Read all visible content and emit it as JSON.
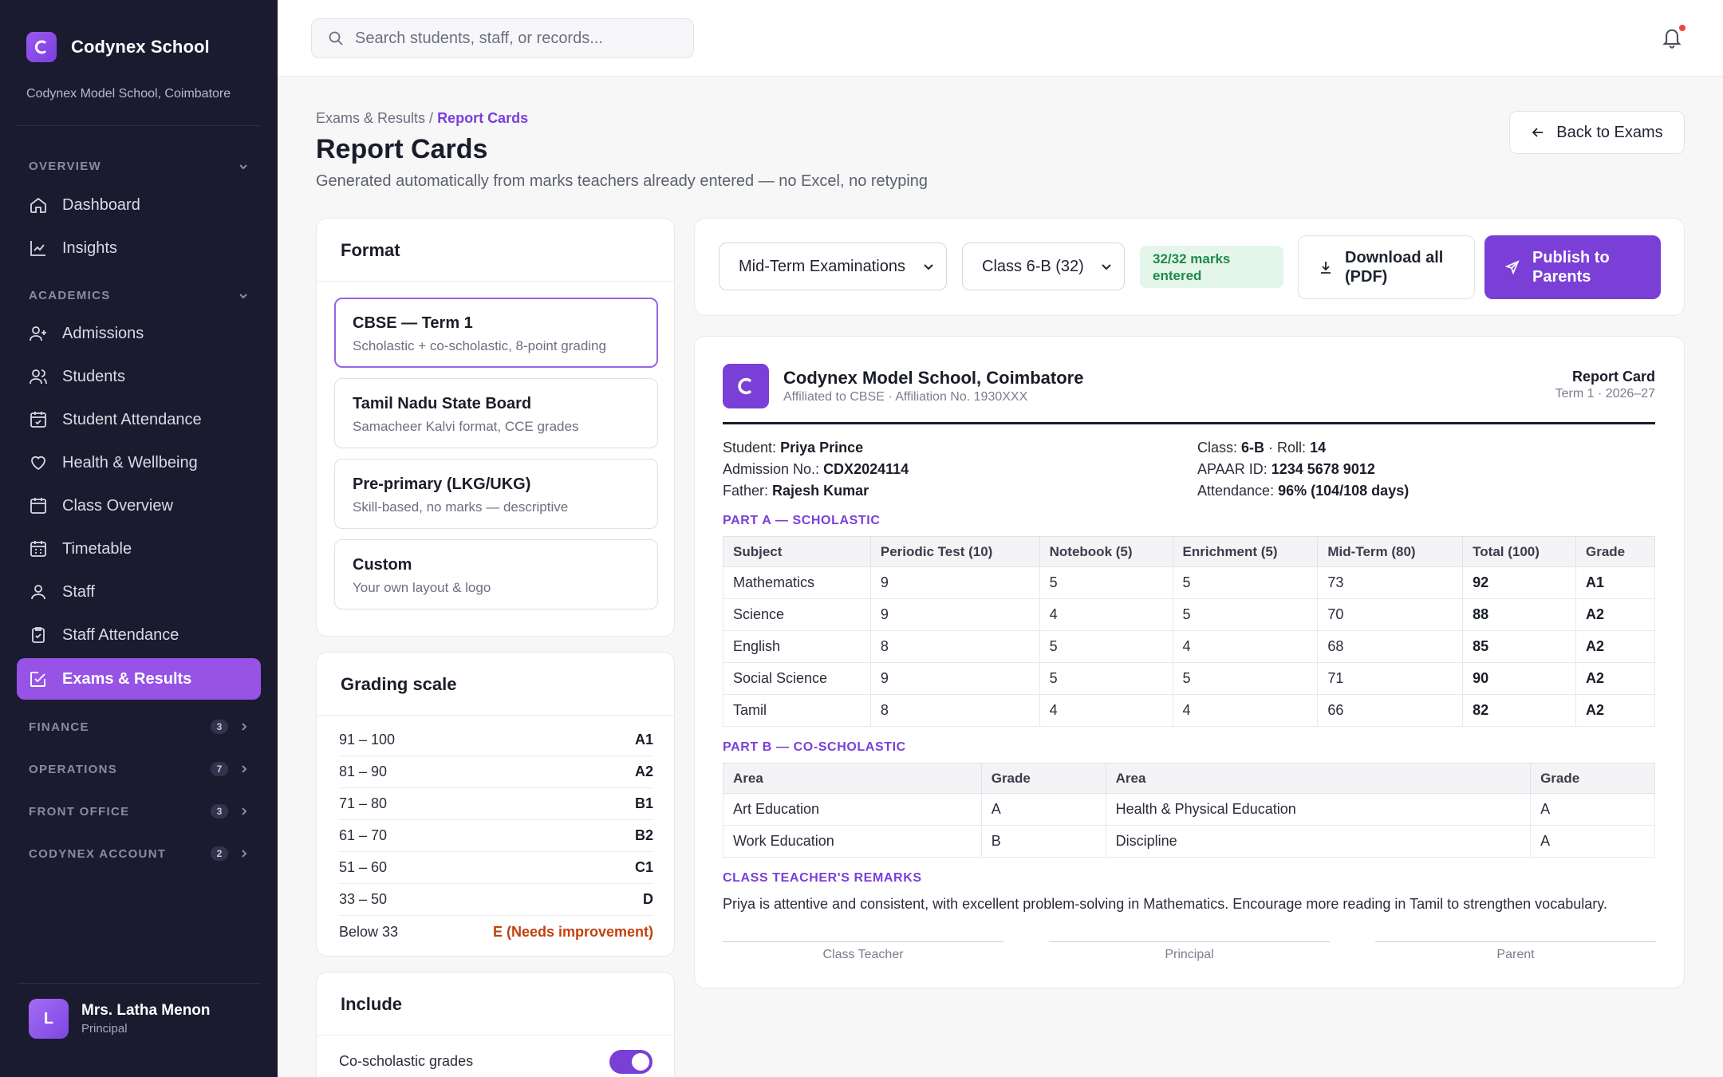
{
  "brand": {
    "name": "Codynex School",
    "subtitle": "Codynex Model School, Coimbatore"
  },
  "sidebar": {
    "sections": {
      "overview": "OVERVIEW",
      "academics": "ACADEMICS",
      "finance": {
        "label": "FINANCE",
        "count": "3"
      },
      "operations": {
        "label": "OPERATIONS",
        "count": "7"
      },
      "front_office": {
        "label": "FRONT OFFICE",
        "count": "3"
      },
      "account": {
        "label": "CODYNEX ACCOUNT",
        "count": "2"
      }
    },
    "items": [
      "Dashboard",
      "Insights",
      "Admissions",
      "Students",
      "Student Attendance",
      "Health & Wellbeing",
      "Class Overview",
      "Timetable",
      "Staff",
      "Staff Attendance",
      "Exams & Results"
    ],
    "active": "Exams & Results"
  },
  "user": {
    "initial": "L",
    "name": "Mrs. Latha Menon",
    "role": "Principal"
  },
  "search": {
    "placeholder": "Search students, staff, or records..."
  },
  "header": {
    "crumb_parent": "Exams & Results",
    "crumb_sep": " / ",
    "crumb_current": "Report Cards",
    "title": "Report Cards",
    "subtitle": "Generated automatically from marks teachers already entered — no Excel, no retyping",
    "back_label": "Back to Exams"
  },
  "format": {
    "title": "Format",
    "options": [
      {
        "name": "CBSE — Term 1",
        "desc": "Scholastic + co-scholastic, 8-point grading"
      },
      {
        "name": "Tamil Nadu State Board",
        "desc": "Samacheer Kalvi format, CCE grades"
      },
      {
        "name": "Pre-primary (LKG/UKG)",
        "desc": "Skill-based, no marks — descriptive"
      },
      {
        "name": "Custom",
        "desc": "Your own layout & logo"
      }
    ]
  },
  "grading": {
    "title": "Grading scale",
    "rows": [
      {
        "range": "91 – 100",
        "grade": "A1"
      },
      {
        "range": "81 – 90",
        "grade": "A2"
      },
      {
        "range": "71 – 80",
        "grade": "B1"
      },
      {
        "range": "61 – 70",
        "grade": "B2"
      },
      {
        "range": "51 – 60",
        "grade": "C1"
      },
      {
        "range": "33 – 50",
        "grade": "D"
      },
      {
        "range": "Below 33",
        "grade": "E (Needs improvement)"
      }
    ]
  },
  "include": {
    "title": "Include",
    "items": [
      {
        "label": "Co-scholastic grades",
        "on": true
      }
    ]
  },
  "toolbar": {
    "exam": "Mid-Term Examinations",
    "class": "Class 6-B (32)",
    "status": "32/32 marks entered",
    "download_label": "Download all (PDF)",
    "publish_label": "Publish to Parents"
  },
  "report": {
    "school": "Codynex Model School, Coimbatore",
    "affiliation": "Affiliated to CBSE · Affiliation No. 1930XXX",
    "title": "Report Card",
    "term": "Term 1 · 2026–27",
    "student": {
      "label": "Student:",
      "value": "Priya Prince"
    },
    "admission": {
      "label": "Admission No.:",
      "value": "CDX2024114"
    },
    "father": {
      "label": "Father:",
      "value": "Rajesh Kumar"
    },
    "class": {
      "label": "Class:",
      "value": "6-B",
      "roll_label": " · Roll:",
      "roll": "14"
    },
    "apaar": {
      "label": "APAAR ID:",
      "value": "1234 5678 9012"
    },
    "attendance": {
      "label": "Attendance:",
      "value": "96% (104/108 days)"
    },
    "part_a": "PART A — SCHOLASTIC",
    "scholastic_headers": [
      "Subject",
      "Periodic Test (10)",
      "Notebook (5)",
      "Enrichment (5)",
      "Mid-Term (80)",
      "Total (100)",
      "Grade"
    ],
    "scholastic_rows": [
      [
        "Mathematics",
        "9",
        "5",
        "5",
        "73",
        "92",
        "A1"
      ],
      [
        "Science",
        "9",
        "4",
        "5",
        "70",
        "88",
        "A2"
      ],
      [
        "English",
        "8",
        "5",
        "4",
        "68",
        "85",
        "A2"
      ],
      [
        "Social Science",
        "9",
        "5",
        "5",
        "71",
        "90",
        "A2"
      ],
      [
        "Tamil",
        "8",
        "4",
        "4",
        "66",
        "82",
        "A2"
      ]
    ],
    "part_b": "PART B — CO-SCHOLASTIC",
    "co_headers": [
      "Area",
      "Grade",
      "Area",
      "Grade"
    ],
    "co_rows": [
      [
        "Art Education",
        "A",
        "Health & Physical Education",
        "A"
      ],
      [
        "Work Education",
        "B",
        "Discipline",
        "A"
      ]
    ],
    "remarks_title": "CLASS TEACHER'S REMARKS",
    "remarks": "Priya is attentive and consistent, with excellent problem-solving in Mathematics. Encourage more reading in Tamil to strengthen vocabulary.",
    "signatures": [
      "Class Teacher",
      "Principal",
      "Parent"
    ]
  },
  "colors": {
    "accent": "#7a3fd6",
    "sidebar_bg": "#1b1b2f",
    "active_nav": "#9653e6",
    "success": "#1f8a4c",
    "warn": "#c2410c"
  }
}
